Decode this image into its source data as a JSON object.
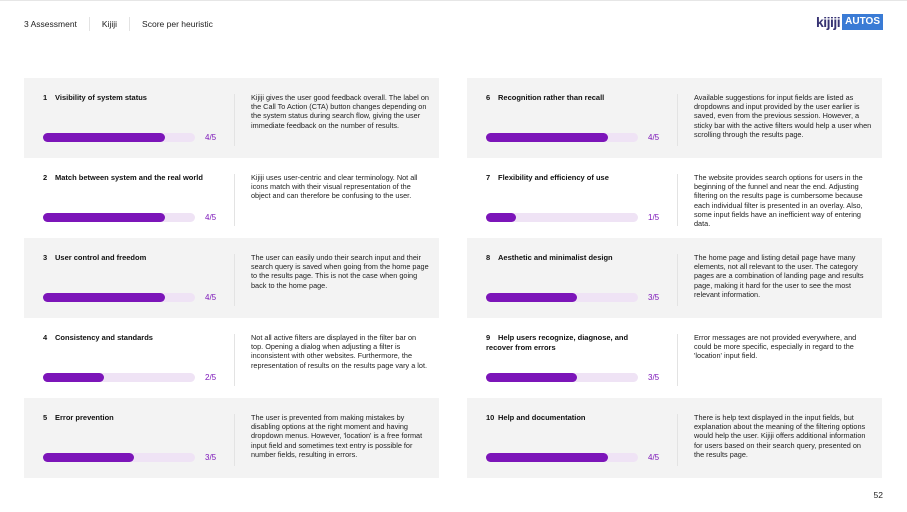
{
  "header": {
    "section": "3  Assessment",
    "brand": "Kijiji",
    "topic": "Score per heuristic"
  },
  "logo": {
    "text_a": "kijiji",
    "text_b": "AUTOS",
    "colors": {
      "kijiji": "#373373",
      "autos_bg": "#3a7bd5"
    }
  },
  "accent": "#7c15b9",
  "heuristics": [
    {
      "num": "1",
      "title": "Visibility of system status",
      "score": 4,
      "score_label": "4/5",
      "desc": "Kijiji gives the user good feedback overall. The label on the Call To Action (CTA) button changes depending on the system status during search flow, giving the user immediate feedback on the number of results."
    },
    {
      "num": "2",
      "title": "Match between system and the real world",
      "score": 4,
      "score_label": "4/5",
      "desc": "Kijiji uses user-centric and clear terminology. Not all icons match with their visual representation of the object and can therefore be confusing to the user."
    },
    {
      "num": "3",
      "title": "User control and freedom",
      "score": 4,
      "score_label": "4/5",
      "desc": "The user can easily undo their search input and their search query is saved when going from the home page to the results page. This is not the case when going back to the home page."
    },
    {
      "num": "4",
      "title": "Consistency and standards",
      "score": 2,
      "score_label": "2/5",
      "desc": "Not all active filters are displayed in the filter bar on top. Opening a dialog when adjusting a filter is inconsistent with other websites. Furthermore, the representation of results on the results page vary a lot."
    },
    {
      "num": "5",
      "title": "Error prevention",
      "score": 3,
      "score_label": "3/5",
      "desc": "The user is prevented from making mistakes by disabling options at the right moment and having dropdown menus. However, 'location' is a free format input field and sometimes text entry is possible for number fields, resulting in errors."
    },
    {
      "num": "6",
      "title": "Recognition rather than recall",
      "score": 4,
      "score_label": "4/5",
      "desc": "Available suggestions for input fields are listed as dropdowns and input provided by the user earlier is saved, even from the previous session. However, a sticky bar with the active filters would help a user when scrolling through the results page."
    },
    {
      "num": "7",
      "title": "Flexibility and efficiency of use",
      "score": 1,
      "score_label": "1/5",
      "desc": "The website provides search options for users in the beginning of the funnel and near the end. Adjusting filtering on the results page is cumbersome because each individual filter is presented in an overlay. Also, some input fields have an inefficient way of entering data."
    },
    {
      "num": "8",
      "title": "Aesthetic and minimalist design",
      "score": 3,
      "score_label": "3/5",
      "desc": "The home page and listing detail page have many elements, not all relevant to the user. The category pages are a combination of landing page and results page, making it hard for the user to see the most relevant information."
    },
    {
      "num": "9",
      "title": "Help users recognize, diagnose, and recover from errors",
      "score": 3,
      "score_label": "3/5",
      "desc": "Error messages are not provided everywhere, and could be more specific, especially in regard to the 'location' input field."
    },
    {
      "num": "10",
      "title": "Help and documentation",
      "score": 4,
      "score_label": "4/5",
      "desc": "There is help text displayed in the input fields, but explanation about the meaning of the filtering options would help the user. Kijiji offers additional information for users based on their search query, presented on the results page."
    }
  ],
  "max_score": 5,
  "page_number": "52"
}
